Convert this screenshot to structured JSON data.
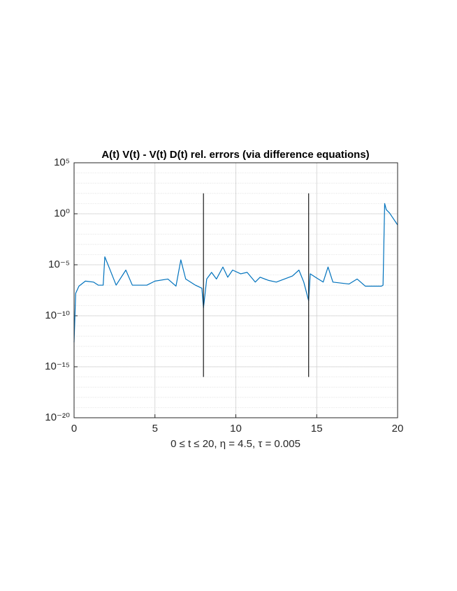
{
  "chart_data": {
    "type": "line",
    "title": "A(t) V(t) - V(t) D(t) rel. errors (via difference equations)",
    "xlabel": "0 ≤ t ≤ 20,  η = 4.5,  τ = 0.005",
    "log_y": true,
    "grid": true,
    "xlim": [
      0,
      20
    ],
    "xticks": [
      0,
      5,
      10,
      15,
      20
    ],
    "ylim": [
      1e-20,
      100000
    ],
    "yticks": [
      {
        "value": 1e-20,
        "label": "10⁻²⁰"
      },
      {
        "value": 1e-15,
        "label": "10⁻¹⁵"
      },
      {
        "value": 1e-10,
        "label": "10⁻¹⁰"
      },
      {
        "value": 1e-05,
        "label": "10⁻⁵"
      },
      {
        "value": 1,
        "label": "10⁰"
      },
      {
        "value": 100000,
        "label": "10⁵"
      }
    ],
    "series": [
      {
        "color": "#0072bd",
        "x": [
          0,
          0.1,
          0.3,
          0.7,
          1.2,
          1.5,
          1.8,
          1.9,
          2.2,
          2.6,
          3.2,
          3.6,
          4.5,
          5.0,
          5.8,
          6.3,
          6.6,
          6.9,
          7.5,
          7.9,
          8.0,
          8.2,
          8.5,
          8.8,
          9.2,
          9.5,
          9.8,
          10.3,
          10.7,
          11.2,
          11.5,
          12,
          12.5,
          13,
          13.5,
          13.9,
          14.2,
          14.5,
          14.6,
          15,
          15.4,
          15.7,
          16,
          17,
          17.5,
          18,
          19,
          19.1,
          19.2,
          19.3,
          19.5,
          20
        ],
        "values": [
          2.5e-13,
          1.6e-08,
          8e-08,
          2.5e-07,
          2e-07,
          1e-07,
          1e-07,
          6e-05,
          4e-06,
          1e-07,
          3e-06,
          1e-07,
          1e-07,
          2.5e-07,
          4e-07,
          8e-08,
          3e-05,
          4e-07,
          1e-07,
          5e-08,
          6e-10,
          4e-07,
          1.8e-06,
          4e-07,
          6e-06,
          6e-07,
          3e-06,
          1.3e-06,
          1.8e-06,
          2e-07,
          6e-07,
          3e-07,
          2e-07,
          4e-07,
          8e-07,
          3e-06,
          2e-07,
          3e-09,
          1.3e-06,
          5e-07,
          2e-07,
          6e-06,
          2e-07,
          1.3e-07,
          4e-07,
          8e-08,
          8e-08,
          1e-07,
          10,
          2.5,
          1.2,
          0.08
        ]
      },
      {
        "color": "#1a1a1a",
        "x": [
          8.0,
          8.0,
          14.5,
          14.5,
          14.5
        ],
        "values": [
          100,
          1e-16,
          null,
          100,
          1e-16
        ]
      }
    ]
  }
}
